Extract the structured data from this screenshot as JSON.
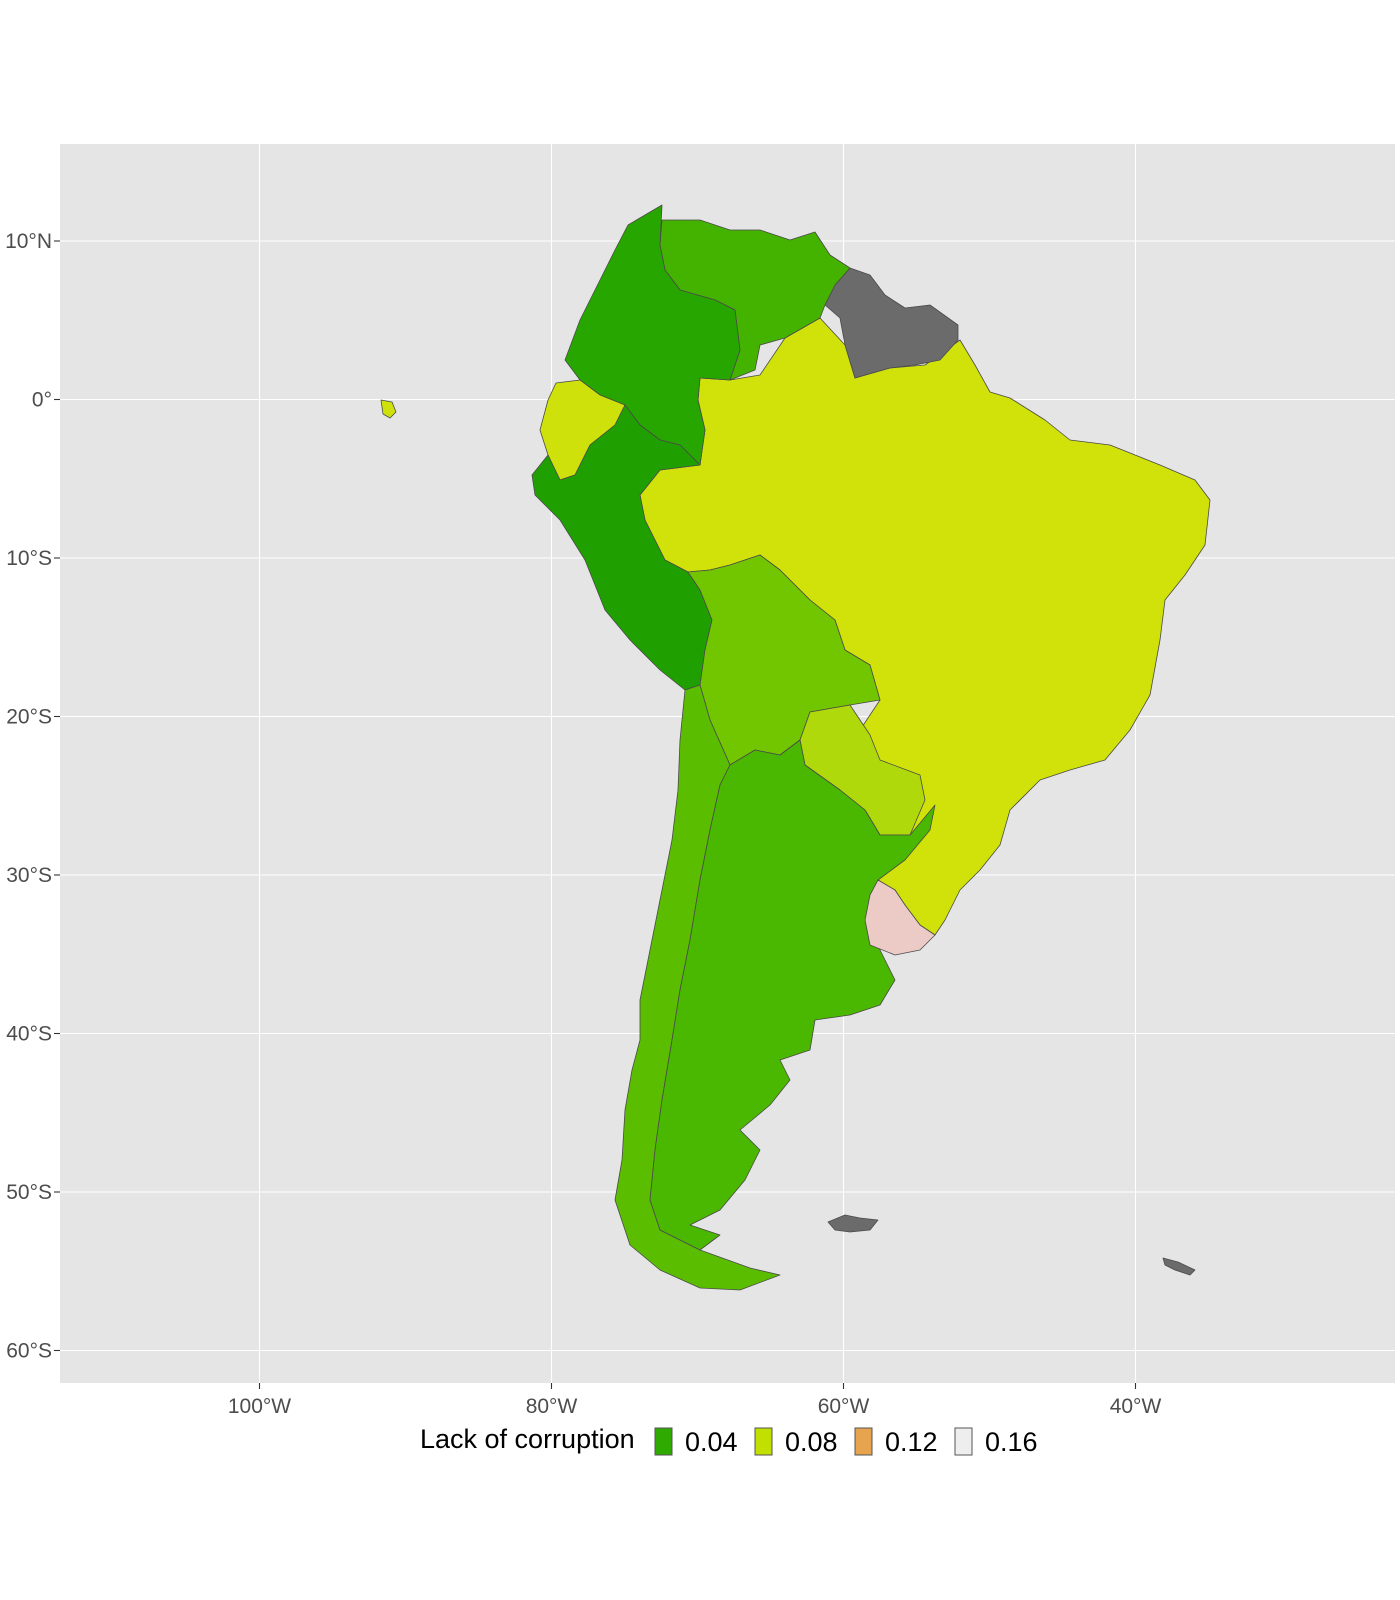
{
  "chart_data": {
    "type": "choropleth",
    "title": "",
    "xlabel": "",
    "ylabel": "",
    "xlim": [
      -113,
      -22
    ],
    "ylim": [
      -62,
      16
    ],
    "grid": true,
    "x_ticks": [
      {
        "value": -100,
        "label": "100°W"
      },
      {
        "value": -80,
        "label": "80°W"
      },
      {
        "value": -60,
        "label": "60°W"
      },
      {
        "value": -40,
        "label": "40°W"
      }
    ],
    "y_ticks": [
      {
        "value": 10,
        "label": "10°N"
      },
      {
        "value": 0,
        "label": "0°"
      },
      {
        "value": -10,
        "label": "10°S"
      },
      {
        "value": -20,
        "label": "20°S"
      },
      {
        "value": -30,
        "label": "30°S"
      },
      {
        "value": -40,
        "label": "40°S"
      },
      {
        "value": -50,
        "label": "50°S"
      },
      {
        "value": -60,
        "label": "60°S"
      }
    ],
    "legend": {
      "title": "Lack of corruption",
      "placement": "bottom",
      "entries": [
        {
          "label": "0.04",
          "color": "#2eaa00"
        },
        {
          "label": "0.08",
          "color": "#c2e000"
        },
        {
          "label": "0.12",
          "color": "#e8a34f"
        },
        {
          "label": "0.16",
          "color": "#eeeeee"
        }
      ]
    },
    "colors": {
      "panel": "#e5e5e5",
      "grid": "#ffffff",
      "na": "#6b6b6b"
    },
    "regions": [
      {
        "id": "colombia",
        "color": "#27a600"
      },
      {
        "id": "venezuela",
        "color": "#44b300"
      },
      {
        "id": "guianas",
        "color": "#6b6b6b"
      },
      {
        "id": "ecuador",
        "color": "#cfe10a"
      },
      {
        "id": "peru",
        "color": "#1fa000"
      },
      {
        "id": "brazil",
        "color": "#d0e20a"
      },
      {
        "id": "bolivia",
        "color": "#72c600"
      },
      {
        "id": "paraguay",
        "color": "#afd90a"
      },
      {
        "id": "chile",
        "color": "#5bbd00"
      },
      {
        "id": "argentina",
        "color": "#4ab700"
      },
      {
        "id": "uruguay",
        "color": "#eccac6"
      },
      {
        "id": "falklands",
        "color": "#6b6b6b"
      },
      {
        "id": "south-georgia",
        "color": "#6b6b6b"
      },
      {
        "id": "galapagos",
        "color": "#cfe10a"
      }
    ]
  }
}
